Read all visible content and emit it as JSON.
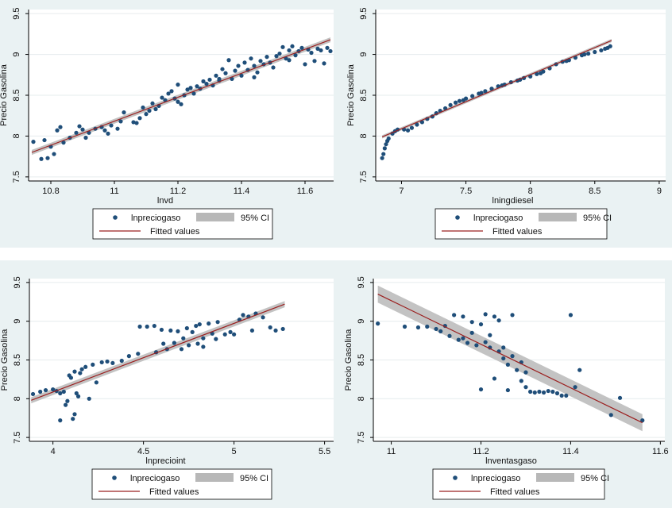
{
  "colors": {
    "panel_bg": "#eaf2f3",
    "plot_bg": "#ffffff",
    "grid": "#e6ecee",
    "points": "#1f4e79",
    "fit_line": "#9b2020",
    "ci_band": "#b8b8b8"
  },
  "legend": {
    "scatter": "lnpreciogaso",
    "ci": "95% CI",
    "fit": "Fitted values"
  },
  "chart_data": [
    {
      "type": "scatter",
      "ylabel": "Precio Gasolina",
      "xlabel": "lnvd",
      "xlim": [
        10.73,
        11.69
      ],
      "ylim": [
        7.45,
        9.55
      ],
      "xticks": [
        10.8,
        11,
        11.2,
        11.4,
        11.6
      ],
      "xtick_labels": [
        "10.8",
        "11",
        "11.2",
        "11.4",
        "11.6"
      ],
      "yticks": [
        7.5,
        8,
        8.5,
        9,
        9.5
      ],
      "ytick_labels": [
        "7.5",
        "8",
        "8.5",
        "9",
        "9.5"
      ],
      "grid": true,
      "legend_position": "bottom",
      "fit": {
        "x": [
          10.74,
          11.68
        ],
        "y": [
          7.8,
          9.18
        ],
        "ci_half": [
          0.03,
          0.03
        ]
      },
      "points": [
        [
          10.745,
          7.93
        ],
        [
          10.77,
          7.72
        ],
        [
          10.79,
          7.73
        ],
        [
          10.81,
          7.78
        ],
        [
          10.82,
          8.07
        ],
        [
          10.83,
          8.11
        ],
        [
          10.78,
          7.95
        ],
        [
          10.8,
          7.87
        ],
        [
          10.84,
          7.92
        ],
        [
          10.86,
          7.98
        ],
        [
          10.88,
          8.04
        ],
        [
          10.89,
          8.12
        ],
        [
          10.9,
          8.08
        ],
        [
          10.91,
          7.98
        ],
        [
          10.92,
          8.04
        ],
        [
          10.94,
          8.09
        ],
        [
          10.96,
          8.11
        ],
        [
          10.97,
          8.07
        ],
        [
          10.98,
          8.03
        ],
        [
          10.99,
          8.13
        ],
        [
          11.01,
          8.09
        ],
        [
          11.02,
          8.18
        ],
        [
          11.03,
          8.29
        ],
        [
          11.06,
          8.17
        ],
        [
          11.07,
          8.16
        ],
        [
          11.08,
          8.22
        ],
        [
          11.09,
          8.35
        ],
        [
          11.1,
          8.27
        ],
        [
          11.11,
          8.31
        ],
        [
          11.12,
          8.4
        ],
        [
          11.13,
          8.33
        ],
        [
          11.14,
          8.37
        ],
        [
          11.15,
          8.47
        ],
        [
          11.16,
          8.44
        ],
        [
          11.17,
          8.52
        ],
        [
          11.18,
          8.55
        ],
        [
          11.19,
          8.46
        ],
        [
          11.2,
          8.42
        ],
        [
          11.2,
          8.63
        ],
        [
          11.21,
          8.39
        ],
        [
          11.22,
          8.5
        ],
        [
          11.23,
          8.57
        ],
        [
          11.24,
          8.59
        ],
        [
          11.25,
          8.52
        ],
        [
          11.26,
          8.61
        ],
        [
          11.27,
          8.58
        ],
        [
          11.28,
          8.67
        ],
        [
          11.29,
          8.64
        ],
        [
          11.3,
          8.69
        ],
        [
          11.31,
          8.62
        ],
        [
          11.32,
          8.74
        ],
        [
          11.33,
          8.68
        ],
        [
          11.34,
          8.82
        ],
        [
          11.35,
          8.77
        ],
        [
          11.36,
          8.93
        ],
        [
          11.37,
          8.7
        ],
        [
          11.38,
          8.8
        ],
        [
          11.39,
          8.86
        ],
        [
          11.4,
          8.74
        ],
        [
          11.41,
          8.9
        ],
        [
          11.42,
          8.81
        ],
        [
          11.43,
          8.95
        ],
        [
          11.44,
          8.86
        ],
        [
          11.45,
          8.78
        ],
        [
          11.46,
          8.92
        ],
        [
          11.47,
          8.88
        ],
        [
          11.48,
          8.97
        ],
        [
          11.49,
          8.9
        ],
        [
          11.5,
          8.84
        ],
        [
          11.51,
          8.98
        ],
        [
          11.52,
          9.01
        ],
        [
          11.53,
          9.09
        ],
        [
          11.54,
          8.95
        ],
        [
          11.55,
          9.05
        ],
        [
          11.56,
          9.1
        ],
        [
          11.57,
          8.99
        ],
        [
          11.58,
          9.04
        ],
        [
          11.59,
          9.08
        ],
        [
          11.6,
          8.88
        ],
        [
          11.61,
          9.06
        ],
        [
          11.62,
          9.02
        ],
        [
          11.63,
          8.92
        ],
        [
          11.64,
          9.07
        ],
        [
          11.65,
          9.05
        ],
        [
          11.66,
          8.89
        ],
        [
          11.67,
          9.08
        ],
        [
          11.68,
          9.04
        ],
        [
          11.55,
          8.93
        ],
        [
          11.44,
          8.72
        ],
        [
          11.33,
          8.7
        ]
      ]
    },
    {
      "type": "scatter",
      "ylabel": "Precio Gasolina",
      "xlabel": "lningdiesel",
      "xlim": [
        6.8,
        9.05
      ],
      "ylim": [
        7.45,
        9.55
      ],
      "xticks": [
        7,
        7.5,
        8,
        8.5,
        9
      ],
      "xtick_labels": [
        "7",
        "7.5",
        "8",
        "8.5",
        "9"
      ],
      "yticks": [
        7.5,
        8,
        8.5,
        9,
        9.5
      ],
      "ytick_labels": [
        "7.5",
        "8",
        "8.5",
        "9",
        "9.5"
      ],
      "grid": true,
      "legend_position": "bottom",
      "fit": {
        "x": [
          6.85,
          8.63
        ],
        "y": [
          7.99,
          9.17
        ],
        "ci_half": [
          0.02,
          0.02
        ]
      },
      "points": [
        [
          6.85,
          7.73
        ],
        [
          6.86,
          7.78
        ],
        [
          6.87,
          7.85
        ],
        [
          6.88,
          7.9
        ],
        [
          6.89,
          7.94
        ],
        [
          6.9,
          7.97
        ],
        [
          6.93,
          8.03
        ],
        [
          6.95,
          8.06
        ],
        [
          6.97,
          8.08
        ],
        [
          7.02,
          8.08
        ],
        [
          7.05,
          8.07
        ],
        [
          7.08,
          8.1
        ],
        [
          7.12,
          8.14
        ],
        [
          7.16,
          8.17
        ],
        [
          7.2,
          8.21
        ],
        [
          7.24,
          8.24
        ],
        [
          7.27,
          8.28
        ],
        [
          7.3,
          8.31
        ],
        [
          7.34,
          8.34
        ],
        [
          7.38,
          8.38
        ],
        [
          7.42,
          8.41
        ],
        [
          7.45,
          8.43
        ],
        [
          7.5,
          8.46
        ],
        [
          7.55,
          8.49
        ],
        [
          7.6,
          8.52
        ],
        [
          7.65,
          8.55
        ],
        [
          7.7,
          8.58
        ],
        [
          7.75,
          8.61
        ],
        [
          7.8,
          8.63
        ],
        [
          7.85,
          8.66
        ],
        [
          7.9,
          8.68
        ],
        [
          7.95,
          8.71
        ],
        [
          8.0,
          8.73
        ],
        [
          8.05,
          8.76
        ],
        [
          8.1,
          8.79
        ],
        [
          8.15,
          8.83
        ],
        [
          8.2,
          8.88
        ],
        [
          8.25,
          8.91
        ],
        [
          8.3,
          8.93
        ],
        [
          8.35,
          8.96
        ],
        [
          8.4,
          8.99
        ],
        [
          8.45,
          9.01
        ],
        [
          8.5,
          9.03
        ],
        [
          8.55,
          9.05
        ],
        [
          8.58,
          9.07
        ],
        [
          8.6,
          9.08
        ],
        [
          8.62,
          9.1
        ],
        [
          7.48,
          8.44
        ],
        [
          7.62,
          8.53
        ],
        [
          7.78,
          8.62
        ],
        [
          7.92,
          8.69
        ],
        [
          8.08,
          8.77
        ],
        [
          8.28,
          8.92
        ],
        [
          8.42,
          9.0
        ]
      ]
    },
    {
      "type": "scatter",
      "ylabel": "Precio Gasolina",
      "xlabel": "lnprecioint",
      "xlim": [
        3.87,
        5.55
      ],
      "ylim": [
        7.45,
        9.55
      ],
      "xticks": [
        4,
        4.5,
        5,
        5.5
      ],
      "xtick_labels": [
        "4",
        "4.5",
        "5",
        "5.5"
      ],
      "yticks": [
        7.5,
        8,
        8.5,
        9,
        9.5
      ],
      "ytick_labels": [
        "7.5",
        "8",
        "8.5",
        "9",
        "9.5"
      ],
      "grid": true,
      "legend_position": "bottom",
      "fit": {
        "x": [
          3.88,
          5.28
        ],
        "y": [
          7.98,
          9.22
        ],
        "ci_half": [
          0.04,
          0.04
        ]
      },
      "points": [
        [
          3.89,
          8.06
        ],
        [
          3.93,
          8.09
        ],
        [
          3.96,
          8.11
        ],
        [
          4.0,
          8.12
        ],
        [
          4.02,
          8.1
        ],
        [
          4.04,
          8.07
        ],
        [
          4.04,
          7.72
        ],
        [
          4.06,
          8.09
        ],
        [
          4.07,
          7.92
        ],
        [
          4.08,
          7.97
        ],
        [
          4.09,
          8.3
        ],
        [
          4.1,
          8.27
        ],
        [
          4.11,
          7.74
        ],
        [
          4.12,
          7.8
        ],
        [
          4.12,
          8.35
        ],
        [
          4.13,
          8.07
        ],
        [
          4.14,
          8.03
        ],
        [
          4.15,
          8.33
        ],
        [
          4.16,
          8.38
        ],
        [
          4.18,
          8.41
        ],
        [
          4.2,
          8.0
        ],
        [
          4.22,
          8.44
        ],
        [
          4.24,
          8.21
        ],
        [
          4.27,
          8.47
        ],
        [
          4.3,
          8.48
        ],
        [
          4.33,
          8.46
        ],
        [
          4.38,
          8.49
        ],
        [
          4.42,
          8.55
        ],
        [
          4.47,
          8.58
        ],
        [
          4.48,
          8.93
        ],
        [
          4.52,
          8.93
        ],
        [
          4.56,
          8.94
        ],
        [
          4.57,
          8.6
        ],
        [
          4.6,
          8.89
        ],
        [
          4.63,
          8.64
        ],
        [
          4.65,
          8.88
        ],
        [
          4.67,
          8.72
        ],
        [
          4.69,
          8.87
        ],
        [
          4.71,
          8.64
        ],
        [
          4.72,
          8.78
        ],
        [
          4.74,
          8.91
        ],
        [
          4.75,
          8.69
        ],
        [
          4.77,
          8.86
        ],
        [
          4.79,
          8.94
        ],
        [
          4.8,
          8.71
        ],
        [
          4.81,
          8.96
        ],
        [
          4.83,
          8.67
        ],
        [
          4.86,
          8.97
        ],
        [
          4.88,
          8.84
        ],
        [
          4.91,
          8.99
        ],
        [
          4.95,
          8.83
        ],
        [
          4.98,
          8.86
        ],
        [
          5.0,
          8.83
        ],
        [
          5.03,
          9.02
        ],
        [
          5.05,
          9.08
        ],
        [
          5.08,
          9.06
        ],
        [
          5.1,
          8.88
        ],
        [
          5.12,
          9.1
        ],
        [
          5.16,
          9.05
        ],
        [
          5.2,
          8.92
        ],
        [
          5.23,
          8.88
        ],
        [
          5.27,
          8.9
        ],
        [
          4.83,
          8.78
        ],
        [
          4.61,
          8.71
        ],
        [
          4.9,
          8.77
        ]
      ]
    },
    {
      "type": "scatter",
      "ylabel": "Precio Gasolina",
      "xlabel": "lnventasgaso",
      "xlim": [
        10.96,
        11.61
      ],
      "ylim": [
        7.45,
        9.55
      ],
      "xticks": [
        11,
        11.2,
        11.4,
        11.6
      ],
      "xtick_labels": [
        "11",
        "11.2",
        "11.4",
        "11.6"
      ],
      "yticks": [
        7.5,
        8,
        8.5,
        9,
        9.5
      ],
      "ytick_labels": [
        "7.5",
        "8",
        "8.5",
        "9",
        "9.5"
      ],
      "grid": true,
      "legend_position": "bottom",
      "fit": {
        "x": [
          10.97,
          11.56
        ],
        "y": [
          9.35,
          7.69
        ],
        "ci_half": [
          0.11,
          0.11
        ]
      },
      "points": [
        [
          10.97,
          8.97
        ],
        [
          11.03,
          8.93
        ],
        [
          11.06,
          8.92
        ],
        [
          11.08,
          8.93
        ],
        [
          11.1,
          8.9
        ],
        [
          11.11,
          8.87
        ],
        [
          11.12,
          8.94
        ],
        [
          11.13,
          8.81
        ],
        [
          11.14,
          9.08
        ],
        [
          11.15,
          8.76
        ],
        [
          11.16,
          9.06
        ],
        [
          11.17,
          8.72
        ],
        [
          11.18,
          8.99
        ],
        [
          11.19,
          8.69
        ],
        [
          11.2,
          8.96
        ],
        [
          11.21,
          8.73
        ],
        [
          11.21,
          9.09
        ],
        [
          11.22,
          8.66
        ],
        [
          11.23,
          9.06
        ],
        [
          11.24,
          8.61
        ],
        [
          11.24,
          9.01
        ],
        [
          11.25,
          8.52
        ],
        [
          11.26,
          8.44
        ],
        [
          11.27,
          9.08
        ],
        [
          11.28,
          8.37
        ],
        [
          11.29,
          8.23
        ],
        [
          11.3,
          8.15
        ],
        [
          11.31,
          8.09
        ],
        [
          11.32,
          8.08
        ],
        [
          11.33,
          8.09
        ],
        [
          11.34,
          8.08
        ],
        [
          11.35,
          8.1
        ],
        [
          11.36,
          8.09
        ],
        [
          11.37,
          8.07
        ],
        [
          11.38,
          8.04
        ],
        [
          11.39,
          8.04
        ],
        [
          11.4,
          9.08
        ],
        [
          11.41,
          8.15
        ],
        [
          11.42,
          8.37
        ],
        [
          11.49,
          7.79
        ],
        [
          11.51,
          8.01
        ],
        [
          11.56,
          7.72
        ],
        [
          11.22,
          8.82
        ],
        [
          11.25,
          8.66
        ],
        [
          11.27,
          8.55
        ],
        [
          11.29,
          8.47
        ],
        [
          11.23,
          8.26
        ],
        [
          11.2,
          8.12
        ],
        [
          11.26,
          8.11
        ],
        [
          11.3,
          8.34
        ],
        [
          11.18,
          8.85
        ],
        [
          11.16,
          8.78
        ]
      ]
    }
  ]
}
